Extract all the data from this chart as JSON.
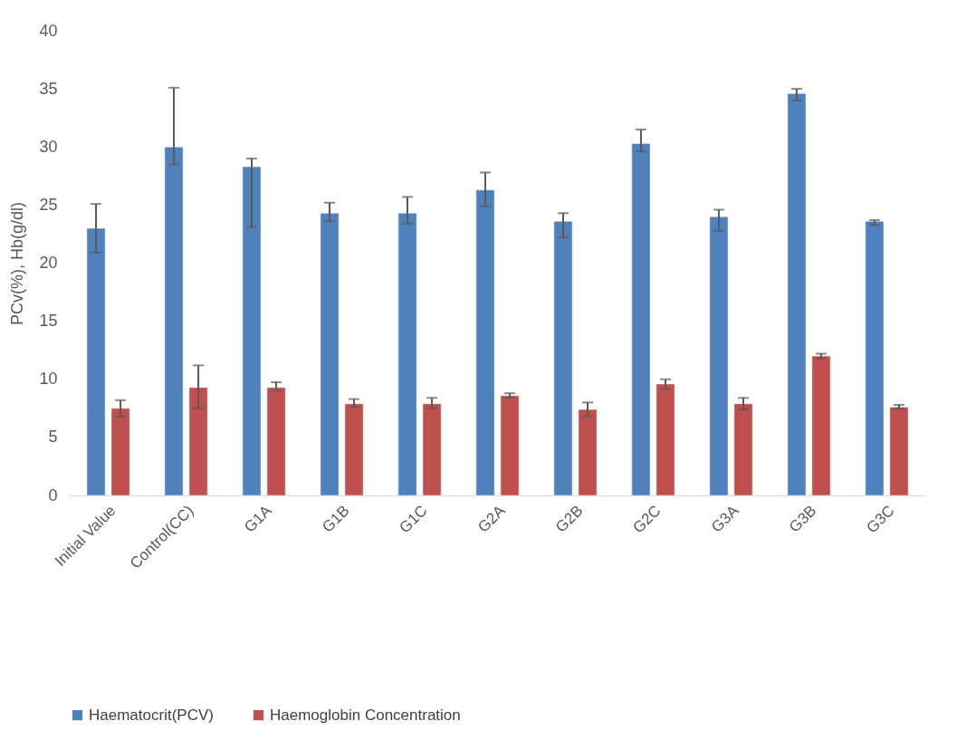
{
  "chart_data": {
    "type": "bar",
    "ylabel": "PCv(%), Hb(g/dl)",
    "categories": [
      "Initial Value",
      "Control(CC)",
      "G1A",
      "G1B",
      "G1C",
      "G2A",
      "G2B",
      "G2C",
      "G3A",
      "G3B",
      "G3C"
    ],
    "series": [
      {
        "name": "Haematocrit(PCV)",
        "color": "#4f81bd",
        "values": [
          23.0,
          30.0,
          28.3,
          24.3,
          24.3,
          26.3,
          23.6,
          30.3,
          24.0,
          34.6,
          23.6
        ],
        "errors": [
          [
            20.9,
            25.1
          ],
          [
            28.5,
            35.1
          ],
          [
            23.1,
            29.0
          ],
          [
            23.6,
            25.2
          ],
          [
            23.4,
            25.7
          ],
          [
            24.9,
            27.8
          ],
          [
            22.2,
            24.3
          ],
          [
            29.6,
            31.5
          ],
          [
            22.8,
            24.6
          ],
          [
            34.0,
            35.0
          ],
          [
            23.3,
            23.7
          ]
        ]
      },
      {
        "name": "Haemoglobin Concentration",
        "color": "#c0504d",
        "values": [
          7.5,
          9.3,
          9.3,
          7.9,
          7.9,
          8.6,
          7.4,
          9.6,
          7.9,
          12.0,
          7.6
        ],
        "errors": [
          [
            6.8,
            8.2
          ],
          [
            7.5,
            11.2
          ],
          [
            9.0,
            9.75
          ],
          [
            7.6,
            8.3
          ],
          [
            7.5,
            8.4
          ],
          [
            8.4,
            8.8
          ],
          [
            6.8,
            8.0
          ],
          [
            9.2,
            10.0
          ],
          [
            7.4,
            8.4
          ],
          [
            11.8,
            12.2
          ],
          [
            7.5,
            7.8
          ]
        ]
      }
    ],
    "ylim": [
      0,
      40
    ],
    "yticks": [
      0,
      5,
      10,
      15,
      20,
      25,
      30,
      35,
      40
    ],
    "grid": false,
    "legend": "bottom"
  }
}
